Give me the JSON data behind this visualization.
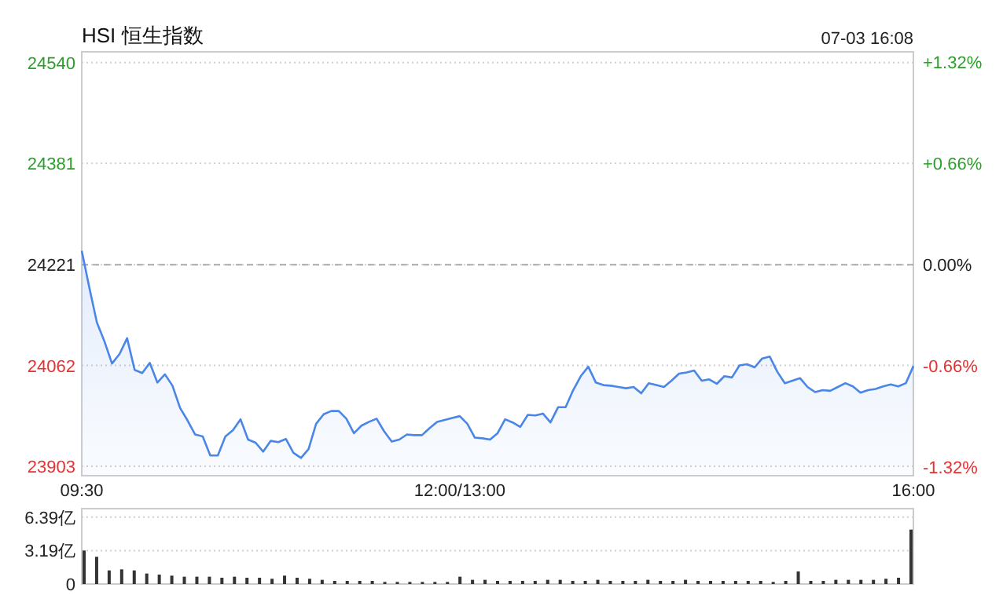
{
  "chart_data": [
    {
      "type": "area",
      "title": "HSI 恒生指数",
      "annotations": [
        "07-03 16:08"
      ],
      "categories": [
        "09:30",
        null,
        null,
        null,
        null,
        null,
        null,
        null,
        null,
        null,
        null,
        null,
        null,
        null,
        null,
        null,
        null,
        null,
        null,
        null,
        null,
        null,
        null,
        null,
        null,
        null,
        null,
        null,
        null,
        null,
        null,
        null,
        null,
        null,
        null,
        null,
        null,
        null,
        null,
        null,
        null,
        null,
        null,
        null,
        null,
        null,
        null,
        null,
        null,
        null,
        "12:00/13:00",
        null,
        null,
        null,
        null,
        null,
        null,
        null,
        null,
        null,
        null,
        null,
        null,
        null,
        null,
        null,
        null,
        null,
        null,
        null,
        null,
        null,
        null,
        null,
        null,
        null,
        null,
        null,
        null,
        null,
        null,
        null,
        null,
        null,
        null,
        null,
        null,
        null,
        null,
        null,
        null,
        null,
        null,
        null,
        null,
        null,
        null,
        null,
        null,
        null,
        null,
        null,
        null,
        null,
        null,
        null,
        null,
        null,
        null,
        null,
        "16:00"
      ],
      "series": [
        {
          "color": "#4a86e8",
          "values": [
            24243,
            24185,
            24130,
            24100,
            24065,
            24080,
            24105,
            24055,
            24050,
            24066,
            24035,
            24048,
            24030,
            23995,
            23975,
            23953,
            23950,
            23920,
            23920,
            23950,
            23960,
            23977,
            23945,
            23940,
            23926,
            23943,
            23941,
            23946,
            23924,
            23916,
            23930,
            23970,
            23985,
            23990,
            23990,
            23978,
            23955,
            23967,
            23973,
            23978,
            23958,
            23942,
            23945,
            23953,
            23952,
            23952,
            23963,
            23973,
            23976,
            23979,
            23982,
            23970,
            23948,
            23947,
            23945,
            23955,
            23977,
            23972,
            23965,
            23984,
            23983,
            23986,
            23972,
            23996,
            23996,
            24023,
            24045,
            24060,
            24035,
            24031,
            24030,
            24028,
            24026,
            24028,
            24018,
            24034,
            24031,
            24028,
            24038,
            24049,
            24051,
            24054,
            24038,
            24040,
            24033,
            24045,
            24043,
            24062,
            24064,
            24059,
            24073,
            24076,
            24052,
            24034,
            24038,
            24042,
            24028,
            24020,
            24023,
            24022,
            24028,
            24034,
            24029,
            24019,
            24023,
            24025,
            24029,
            24032,
            24029,
            24034,
            24061
          ]
        }
      ],
      "ylim": [
        23888,
        24557
      ],
      "yticks": [
        23903,
        24062,
        24221,
        24381,
        24540
      ],
      "y2lim": [
        -1.375,
        1.387
      ],
      "y2ticks": [
        {
          "value": -1.32,
          "label": "-1.32%"
        },
        {
          "value": -0.66,
          "label": "-0.66%"
        },
        {
          "value": 0,
          "label": "0.00%"
        },
        {
          "value": 0.66,
          "label": "+0.66%"
        },
        {
          "value": 1.32,
          "label": "+1.32%"
        }
      ],
      "ref_lines": [
        {
          "axis": "y",
          "value": 24221,
          "line_style": "dashed"
        }
      ],
      "grid": "y"
    },
    {
      "type": "bar",
      "color": "#333333",
      "categories": [
        null,
        null,
        null,
        null,
        null,
        null,
        null,
        null,
        null,
        null,
        null,
        null,
        null,
        null,
        null,
        null,
        null,
        null,
        null,
        null,
        null,
        null,
        null,
        null,
        null,
        null,
        null,
        null,
        null,
        null,
        null,
        null,
        null,
        null,
        null,
        null,
        null,
        null,
        null,
        null,
        null,
        null,
        null,
        null,
        null,
        null,
        null,
        null,
        null,
        null,
        null,
        null,
        null,
        null,
        null,
        null,
        null,
        null,
        null,
        null,
        null,
        null,
        null,
        null,
        null,
        null,
        null
      ],
      "values": [
        3.2,
        2.6,
        1.3,
        1.4,
        1.3,
        1.0,
        0.9,
        0.8,
        0.7,
        0.7,
        0.7,
        0.6,
        0.7,
        0.6,
        0.6,
        0.5,
        0.8,
        0.6,
        0.5,
        0.4,
        0.3,
        0.3,
        0.3,
        0.3,
        0.2,
        0.2,
        0.2,
        0.2,
        0.2,
        0.2,
        0.7,
        0.4,
        0.4,
        0.3,
        0.3,
        0.3,
        0.3,
        0.4,
        0.4,
        0.3,
        0.3,
        0.4,
        0.3,
        0.3,
        0.3,
        0.4,
        0.3,
        0.3,
        0.4,
        0.3,
        0.3,
        0.3,
        0.3,
        0.3,
        0.3,
        0.2,
        0.3,
        1.2,
        0.3,
        0.3,
        0.4,
        0.4,
        0.4,
        0.4,
        0.5,
        0.6,
        5.2
      ],
      "ylim": [
        0,
        7.2
      ],
      "yticks": [
        0,
        {
          "value": 3.19,
          "label": "3.19亿"
        },
        {
          "value": 6.39,
          "label": "6.39亿"
        }
      ],
      "tick_labels": "y",
      "grid": "y"
    }
  ]
}
